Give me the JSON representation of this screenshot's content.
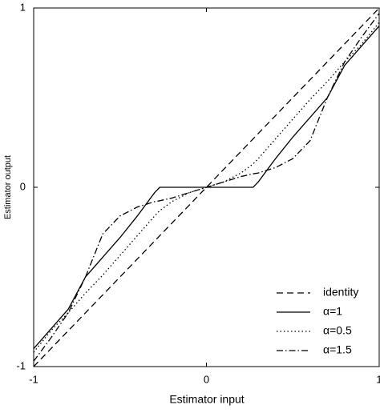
{
  "chart_data": {
    "type": "line",
    "x_label": "Estimator input",
    "y_label": "Estimator output",
    "x": [
      -1,
      -0.9,
      -0.8,
      -0.7,
      -0.6,
      -0.5,
      -0.4,
      -0.3,
      -0.27,
      -0.2,
      -0.1,
      0,
      0.1,
      0.2,
      0.27,
      0.3,
      0.4,
      0.5,
      0.6,
      0.7,
      0.8,
      0.9,
      1
    ],
    "series": [
      {
        "name": "identity",
        "color": "#000000",
        "line_style": "dashed",
        "values": [
          -1,
          -0.9,
          -0.8,
          -0.7,
          -0.6,
          -0.5,
          -0.4,
          -0.3,
          -0.27,
          -0.2,
          -0.1,
          0,
          0.1,
          0.2,
          0.27,
          0.3,
          0.4,
          0.5,
          0.6,
          0.7,
          0.8,
          0.9,
          1
        ]
      },
      {
        "name": "α=1",
        "color": "#000000",
        "line_style": "solid",
        "values": [
          -0.9,
          -0.79,
          -0.68,
          -0.5,
          -0.39,
          -0.28,
          -0.16,
          -0.03,
          0,
          0,
          0,
          0,
          0,
          0,
          0,
          0.03,
          0.16,
          0.28,
          0.39,
          0.5,
          0.68,
          0.79,
          0.9
        ]
      },
      {
        "name": "α=0.5",
        "color": "#000000",
        "line_style": "dotted",
        "values": [
          -0.92,
          -0.8,
          -0.7,
          -0.59,
          -0.49,
          -0.38,
          -0.27,
          -0.16,
          -0.13,
          -0.08,
          -0.03,
          0,
          0.03,
          0.08,
          0.13,
          0.16,
          0.27,
          0.38,
          0.49,
          0.59,
          0.7,
          0.8,
          0.92
        ]
      },
      {
        "name": "α=1.5",
        "color": "#000000",
        "line_style": "dashdot",
        "values": [
          -0.97,
          -0.84,
          -0.7,
          -0.5,
          -0.26,
          -0.16,
          -0.11,
          -0.08,
          -0.075,
          -0.06,
          -0.03,
          0,
          0.03,
          0.06,
          0.075,
          0.08,
          0.11,
          0.16,
          0.26,
          0.5,
          0.7,
          0.84,
          0.97
        ]
      }
    ],
    "xlim": [
      -1,
      1
    ],
    "ylim": [
      -1,
      1
    ],
    "xticks": [
      -1,
      0,
      1
    ],
    "yticks": [
      -1,
      0,
      1
    ],
    "grid": false,
    "legend_position": "lower right"
  }
}
